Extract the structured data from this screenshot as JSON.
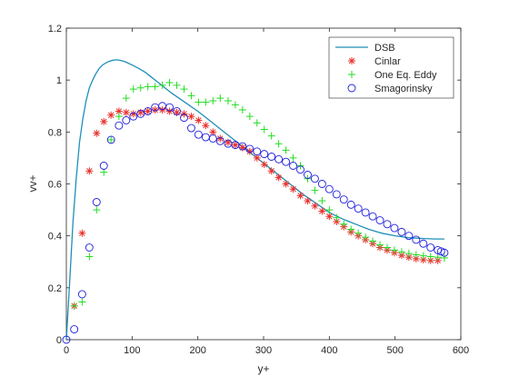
{
  "chart_data": {
    "type": "scatter",
    "title": "",
    "xlabel": "y+",
    "ylabel": "vv+",
    "xlim": [
      0,
      600
    ],
    "ylim": [
      0,
      1.2
    ],
    "xticks": [
      "0",
      "100",
      "200",
      "300",
      "400",
      "500",
      "600"
    ],
    "yticks": [
      "0",
      "0.2",
      "0.4",
      "0.6",
      "0.8",
      "1",
      "1.2"
    ],
    "grid": false,
    "legend_position": "top-right",
    "series": [
      {
        "name": "DSB",
        "style": "line",
        "color": "#1f8fb8",
        "x": [
          0,
          5,
          10,
          15,
          20,
          25,
          30,
          35,
          40,
          45,
          50,
          55,
          60,
          65,
          70,
          75,
          80,
          85,
          90,
          100,
          110,
          120,
          130,
          140,
          150,
          160,
          180,
          200,
          220,
          240,
          260,
          280,
          300,
          320,
          340,
          360,
          380,
          400,
          420,
          440,
          460,
          480,
          500,
          520,
          540,
          560,
          575
        ],
        "y": [
          0.0,
          0.22,
          0.45,
          0.62,
          0.76,
          0.85,
          0.92,
          0.97,
          1.0,
          1.025,
          1.045,
          1.058,
          1.066,
          1.072,
          1.076,
          1.078,
          1.077,
          1.074,
          1.07,
          1.058,
          1.045,
          1.03,
          1.01,
          0.99,
          0.97,
          0.95,
          0.915,
          0.88,
          0.84,
          0.8,
          0.76,
          0.72,
          0.68,
          0.64,
          0.6,
          0.56,
          0.525,
          0.49,
          0.465,
          0.445,
          0.425,
          0.41,
          0.4,
          0.393,
          0.39,
          0.388,
          0.388
        ]
      },
      {
        "name": "Cinlar",
        "style": "marker",
        "marker": "asterisk",
        "color": "#e8322e",
        "x": [
          12,
          24,
          35,
          46,
          57,
          68,
          80,
          91,
          102,
          113,
          124,
          135,
          146,
          157,
          168,
          179,
          190,
          201,
          212,
          223,
          234,
          246,
          257,
          268,
          279,
          290,
          301,
          312,
          323,
          334,
          345,
          356,
          367,
          378,
          389,
          400,
          411,
          422,
          433,
          444,
          455,
          466,
          477,
          488,
          499,
          510,
          521,
          532,
          543,
          554,
          565
        ],
        "y": [
          0.13,
          0.41,
          0.65,
          0.795,
          0.84,
          0.865,
          0.88,
          0.875,
          0.87,
          0.875,
          0.88,
          0.885,
          0.885,
          0.88,
          0.875,
          0.87,
          0.86,
          0.845,
          0.825,
          0.8,
          0.775,
          0.76,
          0.75,
          0.74,
          0.725,
          0.7,
          0.675,
          0.65,
          0.625,
          0.6,
          0.58,
          0.555,
          0.535,
          0.515,
          0.495,
          0.475,
          0.455,
          0.435,
          0.415,
          0.4,
          0.385,
          0.37,
          0.355,
          0.345,
          0.335,
          0.325,
          0.318,
          0.312,
          0.308,
          0.305,
          0.305
        ]
      },
      {
        "name": "One Eq. Eddy",
        "style": "marker",
        "marker": "plus",
        "color": "#22dd22",
        "x": [
          12,
          24,
          35,
          46,
          57,
          68,
          80,
          91,
          102,
          113,
          124,
          135,
          146,
          157,
          168,
          179,
          190,
          201,
          212,
          223,
          234,
          246,
          257,
          268,
          279,
          290,
          301,
          312,
          323,
          334,
          345,
          356,
          367,
          378,
          389,
          400,
          411,
          422,
          433,
          444,
          455,
          466,
          477,
          488,
          499,
          510,
          521,
          532,
          543,
          554,
          565,
          575
        ],
        "y": [
          0.13,
          0.145,
          0.32,
          0.5,
          0.645,
          0.77,
          0.86,
          0.93,
          0.965,
          0.97,
          0.975,
          0.975,
          0.98,
          0.99,
          0.98,
          0.965,
          0.94,
          0.915,
          0.915,
          0.92,
          0.93,
          0.92,
          0.905,
          0.885,
          0.86,
          0.835,
          0.81,
          0.785,
          0.755,
          0.73,
          0.7,
          0.67,
          0.62,
          0.575,
          0.535,
          0.5,
          0.47,
          0.445,
          0.425,
          0.41,
          0.395,
          0.38,
          0.365,
          0.355,
          0.345,
          0.338,
          0.332,
          0.327,
          0.323,
          0.32,
          0.318,
          0.315
        ]
      },
      {
        "name": "Smagorinsky",
        "style": "marker",
        "marker": "circle",
        "color": "#1e1edc",
        "x": [
          0,
          12,
          24,
          35,
          46,
          57,
          68,
          80,
          91,
          102,
          113,
          124,
          135,
          146,
          157,
          168,
          179,
          190,
          201,
          212,
          223,
          234,
          246,
          257,
          268,
          279,
          290,
          301,
          312,
          323,
          334,
          345,
          356,
          367,
          378,
          389,
          400,
          411,
          422,
          433,
          444,
          455,
          466,
          477,
          488,
          499,
          510,
          521,
          532,
          543,
          554,
          565,
          570,
          575
        ],
        "y": [
          0.0,
          0.04,
          0.175,
          0.355,
          0.53,
          0.67,
          0.77,
          0.825,
          0.845,
          0.86,
          0.87,
          0.88,
          0.895,
          0.9,
          0.895,
          0.88,
          0.855,
          0.815,
          0.79,
          0.78,
          0.775,
          0.765,
          0.755,
          0.75,
          0.745,
          0.735,
          0.725,
          0.715,
          0.705,
          0.695,
          0.685,
          0.67,
          0.655,
          0.635,
          0.62,
          0.6,
          0.58,
          0.56,
          0.54,
          0.52,
          0.505,
          0.49,
          0.475,
          0.46,
          0.445,
          0.43,
          0.415,
          0.4,
          0.385,
          0.37,
          0.355,
          0.345,
          0.34,
          0.335
        ]
      }
    ]
  }
}
